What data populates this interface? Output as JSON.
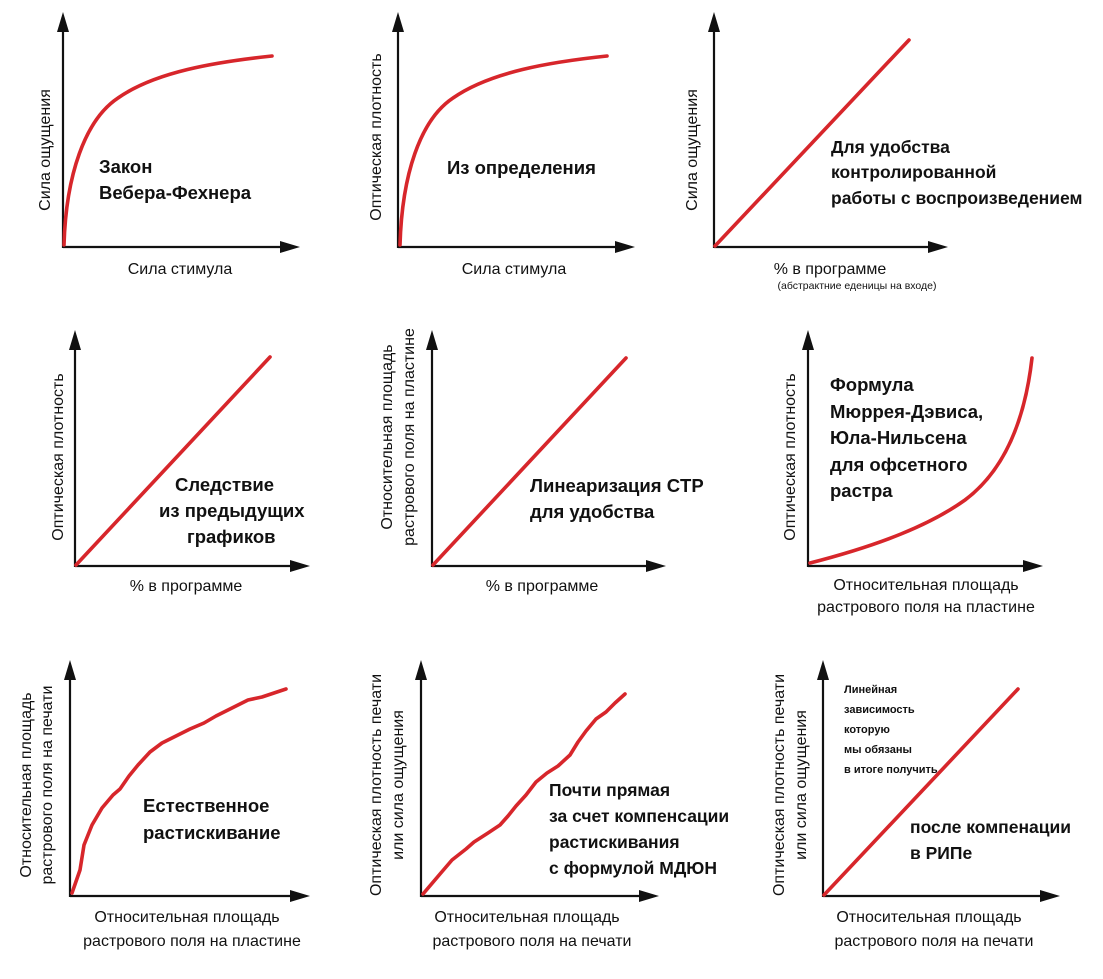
{
  "colors": {
    "axis": "#111111",
    "curve": "#d7262b",
    "background": "#ffffff"
  },
  "panels": [
    {
      "ylabel": [
        "Сила ощущения"
      ],
      "xlabel": [
        "Сила стимула"
      ],
      "annotation": [
        "Закон",
        "Вебера-Фехнера"
      ],
      "curve_shape": "logarithmic-growth"
    },
    {
      "ylabel": [
        "Оптическая плотность"
      ],
      "xlabel": [
        "Сила стимула"
      ],
      "annotation": [
        "Из определения"
      ],
      "curve_shape": "logarithmic-growth"
    },
    {
      "ylabel": [
        "Сила ощущения"
      ],
      "xlabel": [
        "% в программе"
      ],
      "xnote": "(абстрактние еденицы на входе)",
      "annotation": [
        "Для удобства",
        "контролированной",
        "работы с воспроизведением"
      ],
      "curve_shape": "linear"
    },
    {
      "ylabel": [
        "Оптическая плотность"
      ],
      "xlabel": [
        "% в программе"
      ],
      "annotation": [
        "Следствие",
        "из предыдущих",
        "графиков"
      ],
      "curve_shape": "linear"
    },
    {
      "ylabel": [
        "Относительная площадь",
        "растрового поля на пластине"
      ],
      "xlabel": [
        "% в программе"
      ],
      "annotation": [
        "Линеаризация  CTP",
        "для удобства"
      ],
      "curve_shape": "linear"
    },
    {
      "ylabel": [
        "Оптическая плотность"
      ],
      "xlabel": [
        "Относительная площадь",
        "растрового поля на пластине"
      ],
      "annotation": [
        "Формула",
        "Мюррея-Дэвиса,",
        "Юла-Нильсена",
        "для офсетного",
        "растра"
      ],
      "curve_shape": "exponential-rise"
    },
    {
      "ylabel": [
        "Относительная площадь",
        "растрового поля на печати"
      ],
      "xlabel": [
        "Относительная площадь",
        "растрового поля на пластине"
      ],
      "annotation": [
        "Естественное",
        "растискивание"
      ],
      "curve_shape": "concave-growth"
    },
    {
      "ylabel": [
        "Оптическая плотность печати",
        "или сила ощущения"
      ],
      "xlabel": [
        "Относительная площадь",
        "растрового поля на печати"
      ],
      "annotation": [
        "Почти прямая",
        "за счет компенсации",
        "растискивания",
        "с формулой МДЮН"
      ],
      "curve_shape": "near-linear"
    },
    {
      "ylabel": [
        "Оптическая плотность печати",
        "или сила ощущения"
      ],
      "xlabel": [
        "Относительная площадь",
        "растрового поля на печати"
      ],
      "annotation_small": [
        "Линейная",
        "зависимость",
        "которую",
        "мы обязаны",
        "в итоге получить"
      ],
      "annotation": [
        "после компенации",
        "в РИПе"
      ],
      "curve_shape": "linear"
    }
  ]
}
